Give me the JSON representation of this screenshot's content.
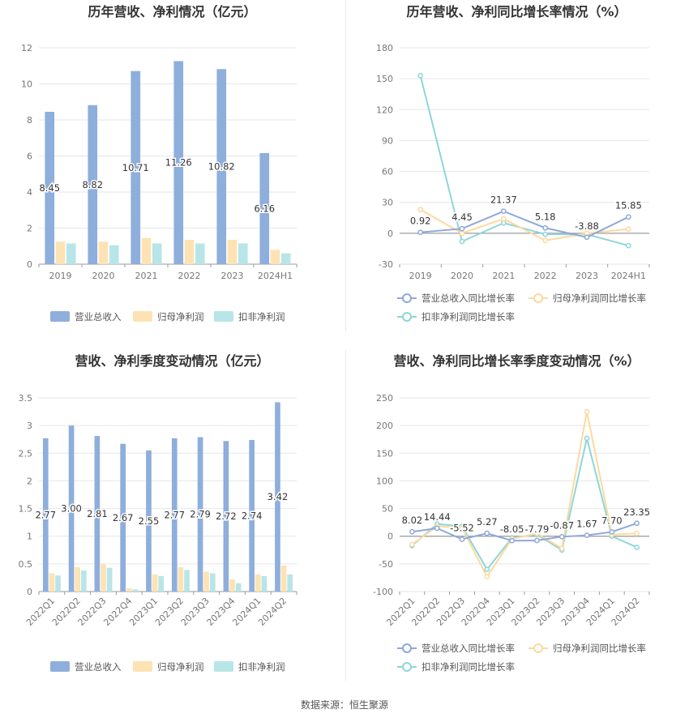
{
  "footer": {
    "source": "数据来源：恒生聚源"
  },
  "colors": {
    "revenue": "#8eaedc",
    "net_profit": "#fde3b4",
    "deducted": "#b8e5e8",
    "revenue_line": "#8fa8d8",
    "net_line": "#fdd9a0",
    "deducted_line": "#8dd6da"
  },
  "chart_data": [
    {
      "id": "c1",
      "type": "bar",
      "title": "历年营收、净利情况（亿元）",
      "categories": [
        "2019",
        "2020",
        "2021",
        "2022",
        "2023",
        "2024H1"
      ],
      "ylim": [
        0,
        12
      ],
      "yticks": [
        0,
        2,
        4,
        6,
        8,
        10,
        12
      ],
      "grid": true,
      "legend_position": "bottom",
      "rotate_xlabels": false,
      "series": [
        {
          "name": "营业总收入",
          "color": "#8eaedc",
          "values": [
            8.45,
            8.82,
            10.71,
            11.26,
            10.82,
            6.16
          ],
          "labels": [
            "8.45",
            "8.82",
            "10.71",
            "11.26",
            "10.82",
            "6.16"
          ]
        },
        {
          "name": "归母净利润",
          "color": "#fde3b4",
          "values": [
            1.25,
            1.25,
            1.45,
            1.35,
            1.35,
            0.8
          ]
        },
        {
          "name": "扣非净利润",
          "color": "#b8e5e8",
          "values": [
            1.15,
            1.05,
            1.15,
            1.15,
            1.15,
            0.6
          ]
        }
      ]
    },
    {
      "id": "c2",
      "type": "line",
      "title": "历年营收、净利同比增长率情况（%）",
      "categories": [
        "2019",
        "2020",
        "2021",
        "2022",
        "2023",
        "2024H1"
      ],
      "ylim": [
        -30,
        180
      ],
      "yticks": [
        -30,
        0,
        30,
        60,
        90,
        120,
        150,
        180
      ],
      "grid": true,
      "legend_position": "bottom",
      "rotate_xlabels": false,
      "series": [
        {
          "name": "营业总收入同比增长率",
          "color": "#8fa8d8",
          "values": [
            0.92,
            4.45,
            21.37,
            5.18,
            -3.88,
            15.85
          ],
          "labels": [
            "0.92",
            "4.45",
            "21.37",
            "5.18",
            "-3.88",
            "15.85"
          ]
        },
        {
          "name": "归母净利润同比增长率",
          "color": "#fdd9a0",
          "values": [
            23,
            0,
            14,
            -7,
            0,
            4
          ]
        },
        {
          "name": "扣非净利润同比增长率",
          "color": "#8dd6da",
          "values": [
            153,
            -8,
            10,
            -1,
            -1,
            -12
          ]
        }
      ]
    },
    {
      "id": "c3",
      "type": "bar",
      "title": "营收、净利季度变动情况（亿元）",
      "categories": [
        "2022Q1",
        "2022Q2",
        "2022Q3",
        "2022Q4",
        "2023Q1",
        "2023Q2",
        "2023Q3",
        "2023Q4",
        "2024Q1",
        "2024Q2"
      ],
      "ylim": [
        0,
        3.5
      ],
      "yticks": [
        0,
        0.5,
        1,
        1.5,
        2,
        2.5,
        3,
        3.5
      ],
      "grid": true,
      "legend_position": "bottom",
      "rotate_xlabels": true,
      "series": [
        {
          "name": "营业总收入",
          "color": "#8eaedc",
          "values": [
            2.77,
            3.0,
            2.81,
            2.67,
            2.55,
            2.77,
            2.79,
            2.72,
            2.74,
            3.42
          ],
          "labels": [
            "2.77",
            "3.00",
            "2.81",
            "2.67",
            "2.55",
            "2.77",
            "2.79",
            "2.72",
            "2.74",
            "3.42"
          ]
        },
        {
          "name": "归母净利润",
          "color": "#fde3b4",
          "values": [
            0.33,
            0.44,
            0.5,
            0.06,
            0.31,
            0.44,
            0.36,
            0.22,
            0.31,
            0.47
          ]
        },
        {
          "name": "扣非净利润",
          "color": "#b8e5e8",
          "values": [
            0.29,
            0.38,
            0.43,
            0.04,
            0.28,
            0.39,
            0.33,
            0.15,
            0.28,
            0.31
          ]
        }
      ]
    },
    {
      "id": "c4",
      "type": "line",
      "title": "营收、净利同比增长率季度变动情况（%）",
      "categories": [
        "2022Q1",
        "2022Q2",
        "2022Q3",
        "2022Q4",
        "2023Q1",
        "2023Q2",
        "2023Q3",
        "2023Q4",
        "2024Q1",
        "2024Q2"
      ],
      "ylim": [
        -100,
        250
      ],
      "yticks": [
        -100,
        -50,
        0,
        50,
        100,
        150,
        200,
        250
      ],
      "grid": true,
      "legend_position": "bottom",
      "rotate_xlabels": true,
      "series": [
        {
          "name": "营业总收入同比增长率",
          "color": "#8fa8d8",
          "values": [
            8.02,
            14.44,
            -5.52,
            5.27,
            -8.05,
            -7.79,
            -0.87,
            1.67,
            7.7,
            23.35
          ],
          "labels": [
            "8.02",
            "14.44",
            "-5.52",
            "5.27",
            "-8.05",
            "-7.79",
            "-0.87",
            "1.67",
            "7.70",
            "23.35"
          ]
        },
        {
          "name": "归母净利润同比增长率",
          "color": "#fdd9a0",
          "values": [
            -15,
            18,
            15,
            -73,
            -5,
            5,
            -22,
            225,
            3,
            5
          ]
        },
        {
          "name": "扣非净利润同比增长率",
          "color": "#8dd6da",
          "values": [
            -17,
            22,
            18,
            -60,
            -3,
            3,
            -25,
            177,
            0,
            -20
          ]
        }
      ]
    }
  ]
}
